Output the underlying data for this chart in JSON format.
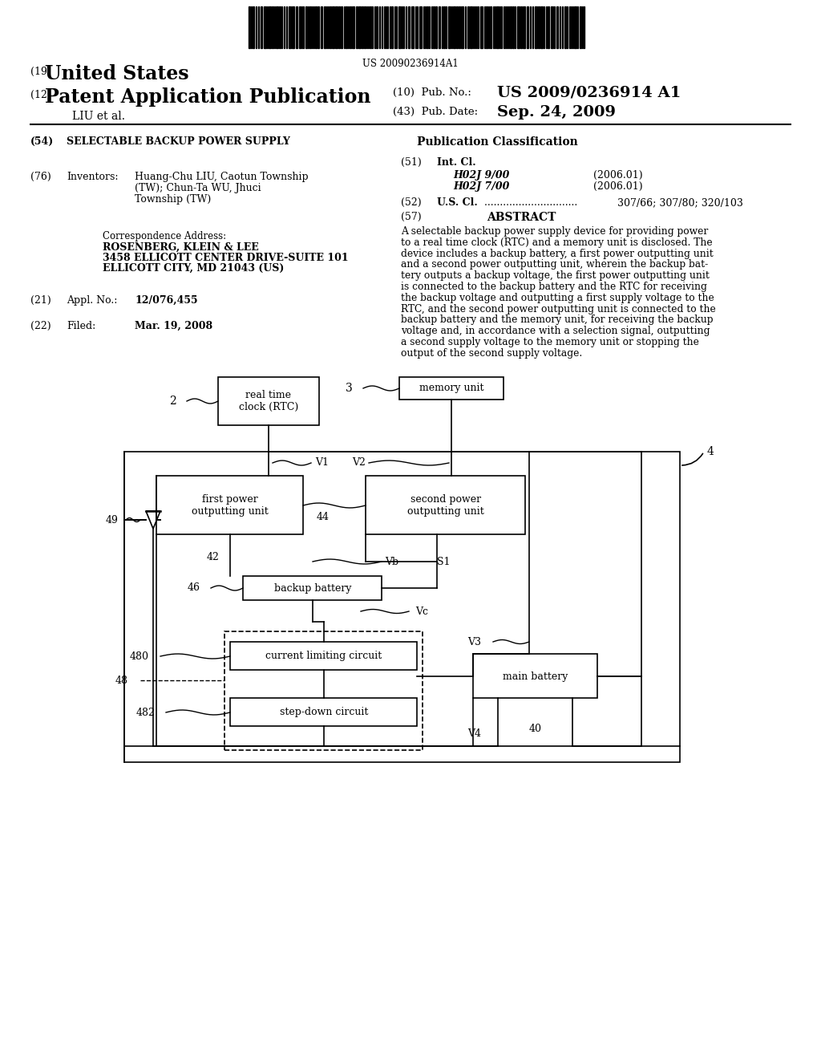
{
  "bg_color": "#ffffff",
  "barcode_text": "US 20090236914A1",
  "patent_number": "US 2009/0236914 A1",
  "pub_date": "Sep. 24, 2009",
  "country": "United States",
  "kind19": "(19)",
  "kind12": "(12)",
  "app_type": "Patent Application Publication",
  "liu_et_al": "LIU et al.",
  "pub_no_label": "(10)  Pub. No.:",
  "pub_date_label": "(43)  Pub. Date:",
  "title_num": "(54)",
  "title": "SELECTABLE BACKUP POWER SUPPLY",
  "pub_class_title": "Publication Classification",
  "int_cl_num": "(51)",
  "int_cl_label": "Int. Cl.",
  "h02j9": "H02J 9/00",
  "h02j7": "H02J 7/00",
  "year2006_1": "(2006.01)",
  "year2006_2": "(2006.01)",
  "us_cl_num": "(52)",
  "us_cl_label": "U.S. Cl.",
  "us_cl_dots": " ..............................",
  "us_cl_val": " 307/66; 307/80; 320/103",
  "abstract_num": "(57)",
  "abstract_title": "ABSTRACT",
  "abstract_text": "A selectable backup power supply device for providing power\nto a real time clock (RTC) and a memory unit is disclosed. The\ndevice includes a backup battery, a first power outputting unit\nand a second power outputting unit, wherein the backup bat-\ntery outputs a backup voltage, the first power outputting unit\nis connected to the backup battery and the RTC for receiving\nthe backup voltage and outputting a first supply voltage to the\nRTC, and the second power outputting unit is connected to the\nbackup battery and the memory unit, for receiving the backup\nvoltage and, in accordance with a selection signal, outputting\na second supply voltage to the memory unit or stopping the\noutput of the second supply voltage.",
  "inventor_num": "(76)",
  "inventor_label": "Inventors:",
  "inventor_line1": "Huang-Chu LIU, Caotun Township",
  "inventor_line2": "(TW); Chun-Ta WU, Jhuci",
  "inventor_line3": "Township (TW)",
  "corr_label": "Correspondence Address:",
  "corr_name": "ROSENBERG, KLEIN & LEE",
  "corr_addr1": "3458 ELLICOTT CENTER DRIVE-SUITE 101",
  "corr_addr2": "ELLICOTT CITY, MD 21043 (US)",
  "appl_num": "(21)",
  "appl_label": "Appl. No.:",
  "appl_val": "12/076,455",
  "filed_num": "(22)",
  "filed_label": "Filed:",
  "filed_val": "Mar. 19, 2008"
}
